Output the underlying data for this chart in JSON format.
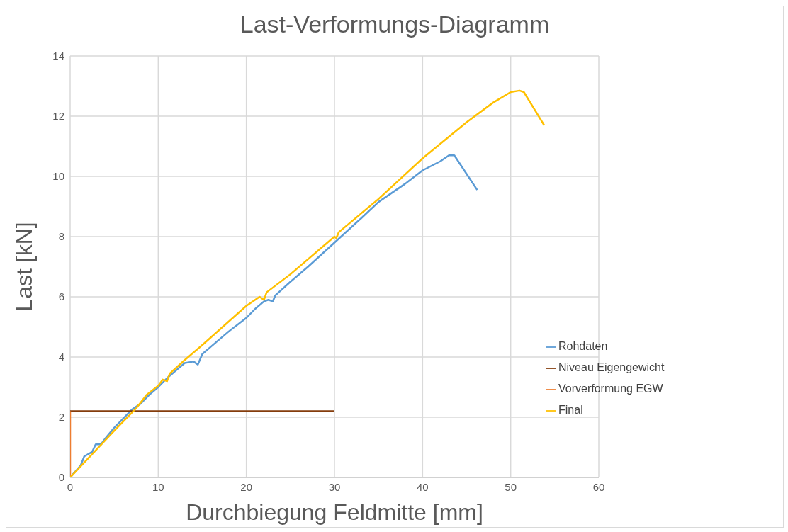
{
  "chart_data": {
    "type": "line",
    "title": "Last-Verformungs-Diagramm",
    "xlabel": "Durchbiegung Feldmitte [mm]",
    "ylabel": "Last [kN]",
    "xlim": [
      0,
      60
    ],
    "xticks": [
      0,
      10,
      20,
      30,
      40,
      50,
      60
    ],
    "ylim": [
      0,
      14
    ],
    "yticks": [
      0,
      2,
      4,
      6,
      8,
      10,
      12,
      14
    ],
    "grid": true,
    "legend": "bottom right",
    "marker": "none",
    "line_style": "solid",
    "series": [
      {
        "name": "Rohdaten",
        "color": "#5b9bd5",
        "x": [
          0,
          1.2,
          1.6,
          2.5,
          2.9,
          3.5,
          4,
          5,
          6,
          7,
          8,
          9,
          10,
          11,
          12,
          13,
          14,
          14.5,
          15,
          16,
          18,
          20,
          21,
          22,
          22.5,
          23,
          23.3,
          25,
          27,
          30,
          33,
          35,
          38,
          40,
          42,
          43,
          43.6,
          46.2
        ],
        "values": [
          0,
          0.4,
          0.7,
          0.85,
          1.1,
          1.1,
          1.3,
          1.65,
          1.95,
          2.25,
          2.45,
          2.75,
          3.0,
          3.3,
          3.55,
          3.8,
          3.85,
          3.75,
          4.1,
          4.35,
          4.85,
          5.3,
          5.6,
          5.85,
          5.9,
          5.85,
          6.05,
          6.5,
          7.0,
          7.8,
          8.6,
          9.15,
          9.75,
          10.2,
          10.5,
          10.7,
          10.7,
          9.55
        ]
      },
      {
        "name": "Niveau Eigengewicht",
        "color": "#843c0c",
        "x": [
          0,
          30
        ],
        "values": [
          2.2,
          2.2
        ]
      },
      {
        "name": "Vorverformung EGW",
        "color": "#ed7d31",
        "x": [
          0,
          0
        ],
        "values": [
          0,
          2.2
        ]
      },
      {
        "name": "Final",
        "color": "#ffc000",
        "x": [
          0,
          5,
          7.5,
          8.7,
          10,
          10.5,
          11,
          11.3,
          13,
          15,
          20,
          21.5,
          22,
          22.3,
          25,
          30,
          30.2,
          30.5,
          35,
          40,
          45,
          48,
          50,
          51,
          51.5,
          53.8
        ],
        "values": [
          0,
          1.55,
          2.3,
          2.75,
          3.05,
          3.25,
          3.2,
          3.45,
          3.9,
          4.4,
          5.7,
          6.0,
          5.9,
          6.15,
          6.75,
          8.0,
          7.95,
          8.15,
          9.25,
          10.6,
          11.8,
          12.45,
          12.8,
          12.85,
          12.8,
          11.7
        ]
      }
    ]
  }
}
